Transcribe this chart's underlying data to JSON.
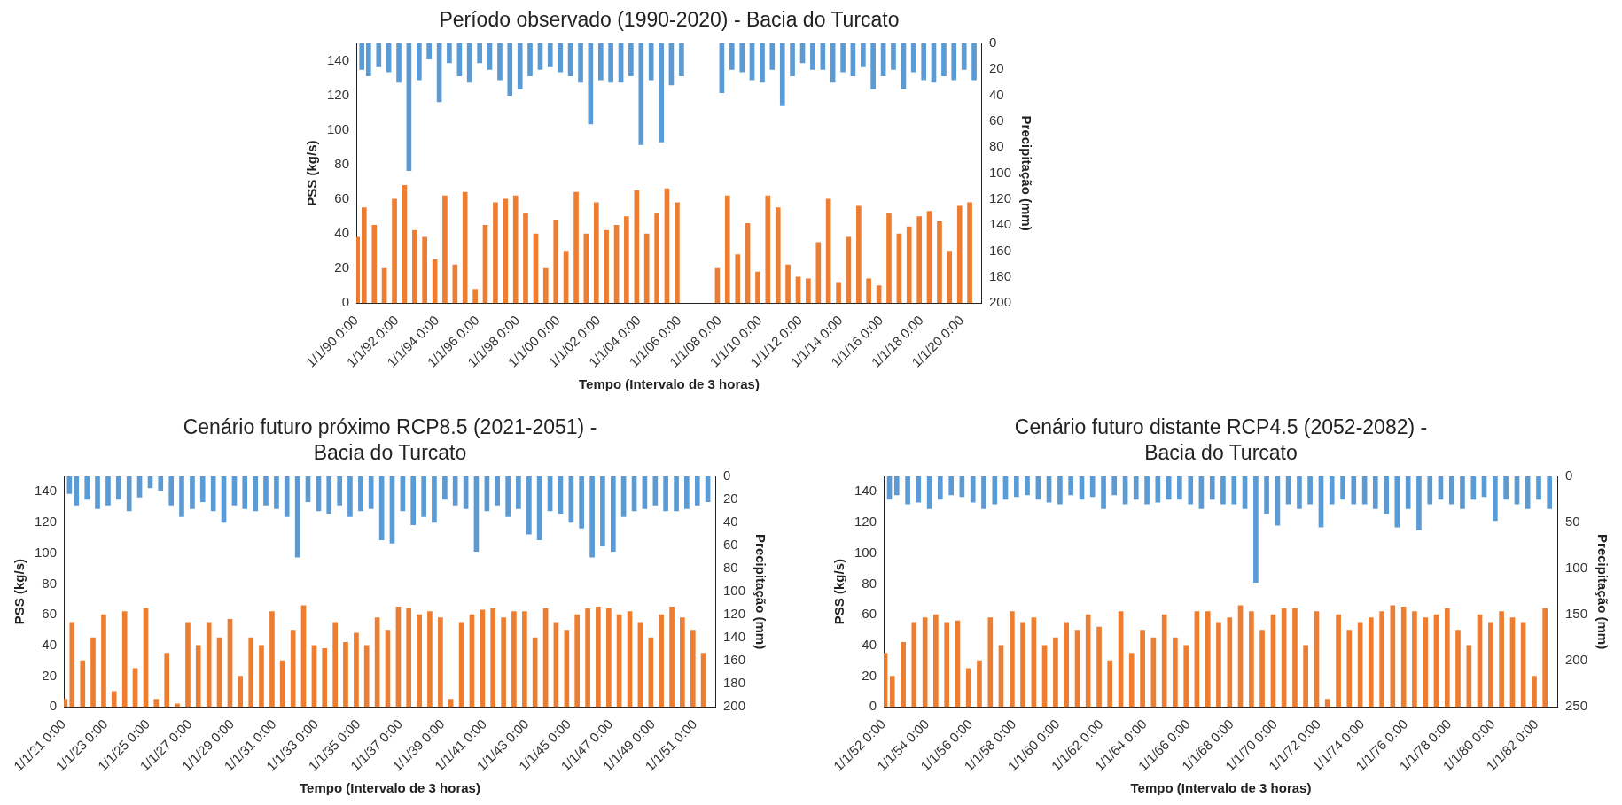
{
  "chart_data": [
    {
      "type": "bar",
      "title": "Período observado (1990-2020) - Bacia do Turcato",
      "xlabel": "Tempo (Intervalo de 3 horas)",
      "ylabel": "PSS (kg/s)",
      "y2label": "Precipitação (mm)",
      "x": [
        "1990-03-01",
        "1990-07-01",
        "1991-01-01",
        "1991-07-01",
        "1992-01-01",
        "1992-07-01",
        "1993-01-01",
        "1993-07-01",
        "1994-01-01",
        "1994-07-01",
        "1995-01-01",
        "1995-07-01",
        "1996-01-01",
        "1996-07-01",
        "1997-01-01",
        "1997-07-01",
        "1998-01-01",
        "1998-07-01",
        "1999-01-01",
        "1999-07-01",
        "2000-01-01",
        "2000-07-01",
        "2001-01-01",
        "2001-07-01",
        "2002-01-01",
        "2002-07-01",
        "2003-01-01",
        "2003-07-01",
        "2004-01-01",
        "2004-07-01",
        "2005-01-01",
        "2005-07-01",
        "2006-01-01",
        "2006-07-01",
        "2007-01-01",
        "2007-07-01",
        "2008-01-01",
        "2008-07-01",
        "2009-01-01",
        "2009-07-01",
        "2010-01-01",
        "2010-07-01",
        "2011-01-01",
        "2011-07-01",
        "2012-01-01",
        "2012-07-01",
        "2013-01-01",
        "2013-07-01",
        "2014-01-01",
        "2014-07-01",
        "2015-01-01",
        "2015-07-01",
        "2016-01-01",
        "2016-07-01",
        "2017-01-01",
        "2017-07-01",
        "2018-01-01",
        "2018-07-01",
        "2019-01-01",
        "2019-07-01",
        "2020-01-01",
        "2020-07-01"
      ],
      "xlim": [
        "1990-01-01",
        "2020-12-31"
      ],
      "xticks": [
        {
          "value": "1990-01-01",
          "label": "1/1/90 0:00"
        },
        {
          "value": "1992-01-01",
          "label": "1/1/92 0:00"
        },
        {
          "value": "1994-01-01",
          "label": "1/1/94 0:00"
        },
        {
          "value": "1996-01-01",
          "label": "1/1/96 0:00"
        },
        {
          "value": "1998-01-01",
          "label": "1/1/98 0:00"
        },
        {
          "value": "2000-01-01",
          "label": "1/1/00 0:00"
        },
        {
          "value": "2002-01-01",
          "label": "1/1/02 0:00"
        },
        {
          "value": "2004-01-01",
          "label": "1/1/04 0:00"
        },
        {
          "value": "2006-01-01",
          "label": "1/1/06 0:00"
        },
        {
          "value": "2008-01-01",
          "label": "1/1/08 0:00"
        },
        {
          "value": "2010-01-01",
          "label": "1/1/10 0:00"
        },
        {
          "value": "2012-01-01",
          "label": "1/1/12 0:00"
        },
        {
          "value": "2014-01-01",
          "label": "1/1/14 0:00"
        },
        {
          "value": "2016-01-01",
          "label": "1/1/16 0:00"
        },
        {
          "value": "2018-01-01",
          "label": "1/1/18 0:00"
        },
        {
          "value": "2020-01-01",
          "label": "1/1/20 0:00"
        }
      ],
      "ylim": [
        0,
        150
      ],
      "yticks": [
        0,
        20,
        40,
        60,
        80,
        100,
        120,
        140
      ],
      "y2lim": [
        200,
        0
      ],
      "y2ticks": [
        0,
        20,
        40,
        60,
        80,
        100,
        120,
        140,
        160,
        180,
        200
      ],
      "series": [
        {
          "color": "#ed7d31",
          "values": [
            38,
            55,
            45,
            20,
            60,
            68,
            42,
            38,
            25,
            62,
            22,
            64,
            8,
            45,
            58,
            60,
            62,
            52,
            40,
            20,
            48,
            30,
            64,
            40,
            58,
            42,
            45,
            50,
            65,
            40,
            52,
            66,
            58,
            null,
            null,
            null,
            20,
            62,
            28,
            46,
            18,
            62,
            55,
            22,
            15,
            14,
            35,
            60,
            12,
            38,
            56,
            14,
            10,
            52,
            40,
            44,
            50,
            53,
            47,
            30,
            56,
            58
          ]
        },
        {
          "axis": "y2",
          "color": "#5b9bd5",
          "values": [
            20,
            25,
            18,
            22,
            30,
            98,
            28,
            12,
            45,
            15,
            25,
            30,
            15,
            20,
            28,
            40,
            35,
            25,
            20,
            18,
            22,
            25,
            30,
            62,
            28,
            30,
            30,
            25,
            78,
            28,
            76,
            32,
            25,
            null,
            null,
            null,
            38,
            20,
            22,
            28,
            30,
            20,
            48,
            25,
            15,
            20,
            20,
            30,
            22,
            25,
            18,
            35,
            25,
            20,
            35,
            22,
            28,
            30,
            25,
            28,
            20,
            28
          ]
        }
      ]
    },
    {
      "type": "bar",
      "title": "Cenário futuro próximo RCP8.5 (2021-2051) - Bacia do Turcato",
      "xlabel": "Tempo (Intervalo de 3 horas)",
      "ylabel": "PSS (kg/s)",
      "y2label": "Precipitação (mm)",
      "x": [
        "2021-03-01",
        "2021-07-01",
        "2022-01-01",
        "2022-07-01",
        "2023-01-01",
        "2023-07-01",
        "2024-01-01",
        "2024-07-01",
        "2025-01-01",
        "2025-07-01",
        "2026-01-01",
        "2026-07-01",
        "2027-01-01",
        "2027-07-01",
        "2028-01-01",
        "2028-07-01",
        "2029-01-01",
        "2029-07-01",
        "2030-01-01",
        "2030-07-01",
        "2031-01-01",
        "2031-07-01",
        "2032-01-01",
        "2032-07-01",
        "2033-01-01",
        "2033-07-01",
        "2034-01-01",
        "2034-07-01",
        "2035-01-01",
        "2035-07-01",
        "2036-01-01",
        "2036-07-01",
        "2037-01-01",
        "2037-07-01",
        "2038-01-01",
        "2038-07-01",
        "2039-01-01",
        "2039-07-01",
        "2040-01-01",
        "2040-07-01",
        "2041-01-01",
        "2041-07-01",
        "2042-01-01",
        "2042-07-01",
        "2043-01-01",
        "2043-07-01",
        "2044-01-01",
        "2044-07-01",
        "2045-01-01",
        "2045-07-01",
        "2046-01-01",
        "2046-07-01",
        "2047-01-01",
        "2047-07-01",
        "2048-01-01",
        "2048-07-01",
        "2049-01-01",
        "2049-07-01",
        "2050-01-01",
        "2050-07-01",
        "2051-01-01",
        "2051-07-01"
      ],
      "xlim": [
        "2021-01-01",
        "2051-12-31"
      ],
      "xticks": [
        {
          "value": "2021-01-01",
          "label": "1/1/21 0:00"
        },
        {
          "value": "2023-01-01",
          "label": "1/1/23 0:00"
        },
        {
          "value": "2025-01-01",
          "label": "1/1/25 0:00"
        },
        {
          "value": "2027-01-01",
          "label": "1/1/27 0:00"
        },
        {
          "value": "2029-01-01",
          "label": "1/1/29 0:00"
        },
        {
          "value": "2031-01-01",
          "label": "1/1/31 0:00"
        },
        {
          "value": "2033-01-01",
          "label": "1/1/33 0:00"
        },
        {
          "value": "2035-01-01",
          "label": "1/1/35 0:00"
        },
        {
          "value": "2037-01-01",
          "label": "1/1/37 0:00"
        },
        {
          "value": "2039-01-01",
          "label": "1/1/39 0:00"
        },
        {
          "value": "2041-01-01",
          "label": "1/1/41 0:00"
        },
        {
          "value": "2043-01-01",
          "label": "1/1/43 0:00"
        },
        {
          "value": "2045-01-01",
          "label": "1/1/45 0:00"
        },
        {
          "value": "2047-01-01",
          "label": "1/1/47 0:00"
        },
        {
          "value": "2049-01-01",
          "label": "1/1/49 0:00"
        },
        {
          "value": "2051-01-01",
          "label": "1/1/51 0:00"
        }
      ],
      "ylim": [
        0,
        150
      ],
      "yticks": [
        0,
        20,
        40,
        60,
        80,
        100,
        120,
        140
      ],
      "y2lim": [
        200,
        0
      ],
      "y2ticks": [
        0,
        20,
        40,
        60,
        80,
        100,
        120,
        140,
        160,
        180,
        200
      ],
      "series": [
        {
          "color": "#ed7d31",
          "values": [
            5,
            55,
            30,
            45,
            60,
            10,
            62,
            25,
            64,
            5,
            35,
            2,
            55,
            40,
            55,
            45,
            57,
            20,
            45,
            40,
            62,
            30,
            50,
            66,
            40,
            38,
            55,
            42,
            48,
            40,
            58,
            50,
            65,
            64,
            60,
            62,
            58,
            5,
            55,
            60,
            63,
            64,
            58,
            62,
            62,
            45,
            64,
            55,
            50,
            60,
            64,
            65,
            64,
            60,
            62,
            55,
            45,
            60,
            65,
            58,
            50,
            35
          ]
        },
        {
          "axis": "y2",
          "color": "#5b9bd5",
          "values": [
            15,
            25,
            20,
            28,
            25,
            20,
            30,
            18,
            10,
            12,
            25,
            35,
            28,
            22,
            30,
            40,
            25,
            28,
            30,
            25,
            28,
            35,
            70,
            22,
            30,
            32,
            25,
            35,
            30,
            28,
            55,
            58,
            30,
            42,
            35,
            40,
            20,
            25,
            28,
            65,
            30,
            25,
            35,
            28,
            50,
            55,
            30,
            32,
            40,
            45,
            70,
            60,
            65,
            35,
            30,
            28,
            25,
            30,
            30,
            28,
            25,
            22
          ]
        }
      ]
    },
    {
      "type": "bar",
      "title": "Cenário futuro distante RCP4.5 (2052-2082) - Bacia do Turcato",
      "xlabel": "Tempo (Intervalo de 3 horas)",
      "ylabel": "PSS (kg/s)",
      "y2label": "Precipitação (mm)",
      "x": [
        "2052-03-01",
        "2052-07-01",
        "2053-01-01",
        "2053-07-01",
        "2054-01-01",
        "2054-07-01",
        "2055-01-01",
        "2055-07-01",
        "2056-01-01",
        "2056-07-01",
        "2057-01-01",
        "2057-07-01",
        "2058-01-01",
        "2058-07-01",
        "2059-01-01",
        "2059-07-01",
        "2060-01-01",
        "2060-07-01",
        "2061-01-01",
        "2061-07-01",
        "2062-01-01",
        "2062-07-01",
        "2063-01-01",
        "2063-07-01",
        "2064-01-01",
        "2064-07-01",
        "2065-01-01",
        "2065-07-01",
        "2066-01-01",
        "2066-07-01",
        "2067-01-01",
        "2067-07-01",
        "2068-01-01",
        "2068-07-01",
        "2069-01-01",
        "2069-07-01",
        "2070-01-01",
        "2070-07-01",
        "2071-01-01",
        "2071-07-01",
        "2072-01-01",
        "2072-07-01",
        "2073-01-01",
        "2073-07-01",
        "2074-01-01",
        "2074-07-01",
        "2075-01-01",
        "2075-07-01",
        "2076-01-01",
        "2076-07-01",
        "2077-01-01",
        "2077-07-01",
        "2078-01-01",
        "2078-07-01",
        "2079-01-01",
        "2079-07-01",
        "2080-01-01",
        "2080-07-01",
        "2081-01-01",
        "2081-07-01",
        "2082-01-01",
        "2082-07-01"
      ],
      "xlim": [
        "2052-01-01",
        "2082-12-31"
      ],
      "xticks": [
        {
          "value": "2052-01-01",
          "label": "1/1/52 0:00"
        },
        {
          "value": "2054-01-01",
          "label": "1/1/54 0:00"
        },
        {
          "value": "2056-01-01",
          "label": "1/1/56 0:00"
        },
        {
          "value": "2058-01-01",
          "label": "1/1/58 0:00"
        },
        {
          "value": "2060-01-01",
          "label": "1/1/60 0:00"
        },
        {
          "value": "2062-01-01",
          "label": "1/1/62 0:00"
        },
        {
          "value": "2064-01-01",
          "label": "1/1/64 0:00"
        },
        {
          "value": "2066-01-01",
          "label": "1/1/66 0:00"
        },
        {
          "value": "2068-01-01",
          "label": "1/1/68 0:00"
        },
        {
          "value": "2070-01-01",
          "label": "1/1/70 0:00"
        },
        {
          "value": "2072-01-01",
          "label": "1/1/72 0:00"
        },
        {
          "value": "2074-01-01",
          "label": "1/1/74 0:00"
        },
        {
          "value": "2076-01-01",
          "label": "1/1/76 0:00"
        },
        {
          "value": "2078-01-01",
          "label": "1/1/78 0:00"
        },
        {
          "value": "2080-01-01",
          "label": "1/1/80 0:00"
        },
        {
          "value": "2082-01-01",
          "label": "1/1/82 0:00"
        }
      ],
      "ylim": [
        0,
        150
      ],
      "yticks": [
        0,
        20,
        40,
        60,
        80,
        100,
        120,
        140
      ],
      "y2lim": [
        250,
        0
      ],
      "y2ticks": [
        0,
        50,
        100,
        150,
        200,
        250
      ],
      "series": [
        {
          "color": "#ed7d31",
          "values": [
            35,
            20,
            42,
            55,
            58,
            60,
            55,
            56,
            25,
            30,
            58,
            40,
            62,
            55,
            58,
            40,
            45,
            55,
            50,
            60,
            52,
            30,
            62,
            35,
            50,
            45,
            60,
            45,
            40,
            62,
            62,
            55,
            58,
            66,
            62,
            50,
            60,
            64,
            64,
            40,
            62,
            5,
            60,
            50,
            55,
            58,
            62,
            66,
            65,
            62,
            58,
            60,
            64,
            50,
            40,
            60,
            55,
            62,
            58,
            55,
            20,
            64
          ]
        },
        {
          "axis": "y2",
          "color": "#5b9bd5",
          "values": [
            25,
            20,
            30,
            28,
            35,
            25,
            20,
            22,
            28,
            35,
            30,
            25,
            22,
            20,
            25,
            28,
            30,
            20,
            25,
            22,
            35,
            20,
            30,
            25,
            30,
            28,
            25,
            25,
            30,
            35,
            25,
            30,
            30,
            35,
            115,
            40,
            53,
            30,
            35,
            30,
            55,
            30,
            25,
            30,
            30,
            35,
            40,
            55,
            35,
            58,
            30,
            25,
            30,
            35,
            25,
            22,
            48,
            25,
            30,
            35,
            25,
            35
          ]
        }
      ]
    }
  ]
}
